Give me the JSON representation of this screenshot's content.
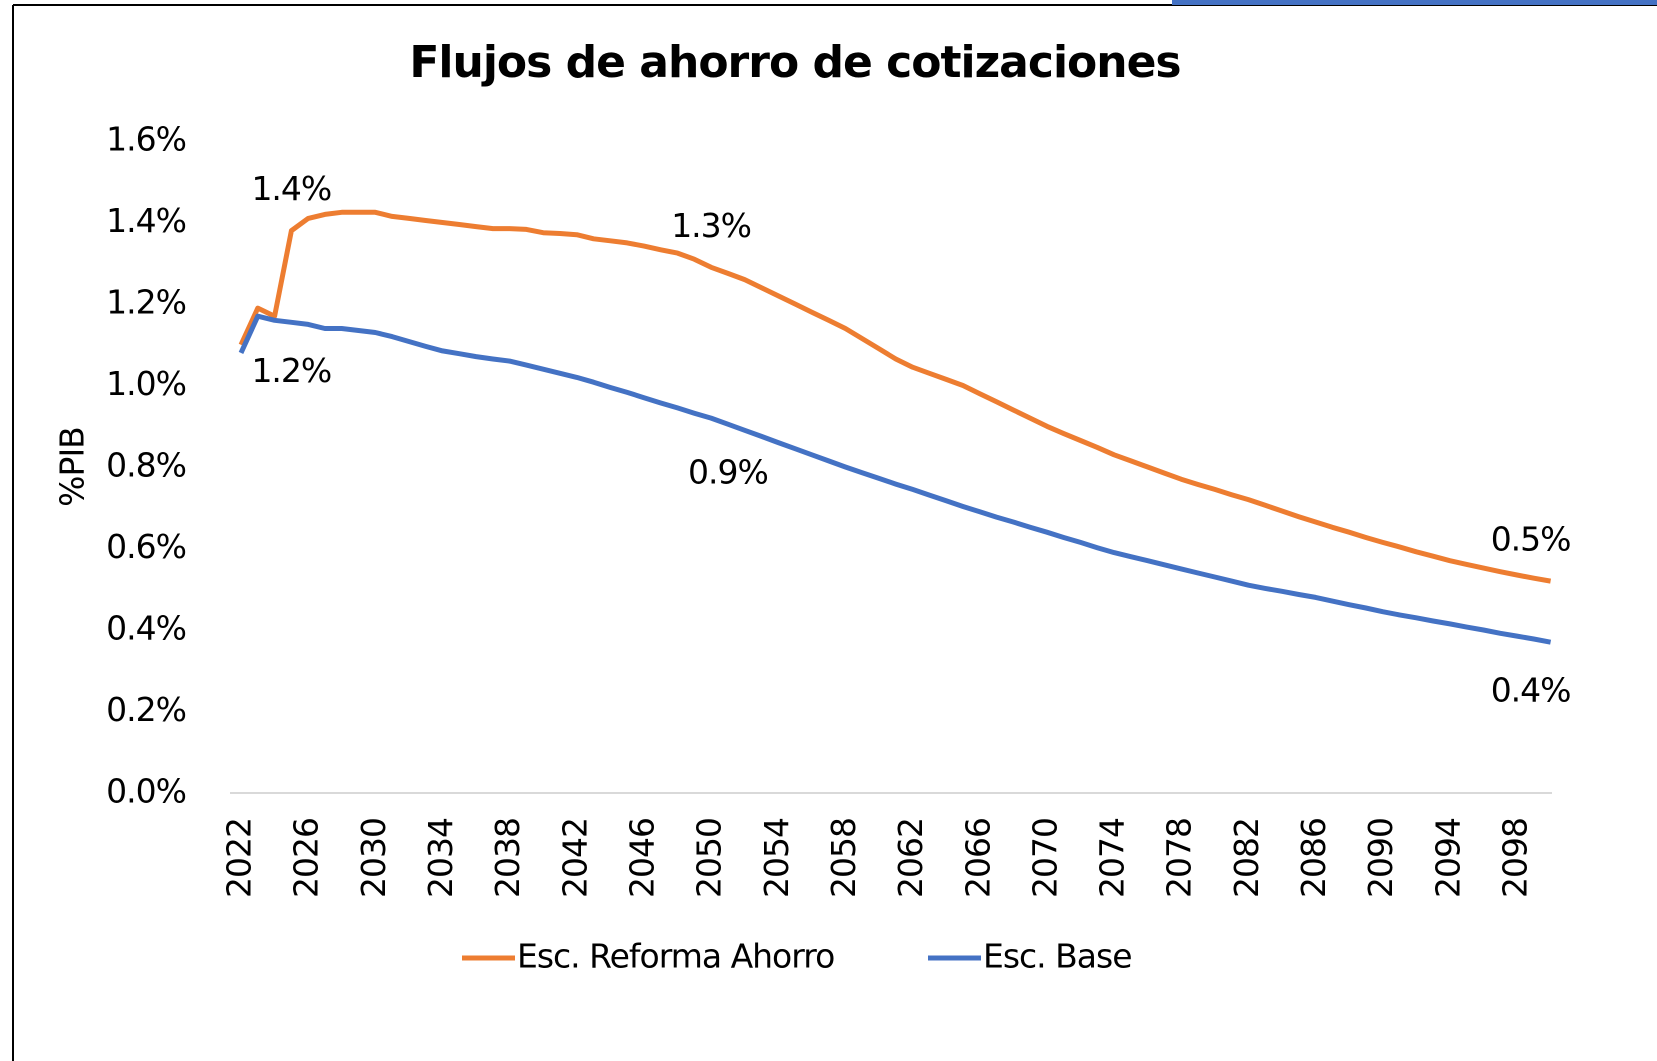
{
  "chart_data": {
    "type": "line",
    "title": "Flujos de ahorro de cotizaciones",
    "y_label": "%PIB",
    "categories": [
      "2022",
      null,
      null,
      null,
      "2026",
      null,
      null,
      null,
      "2030",
      null,
      null,
      null,
      "2034",
      null,
      null,
      null,
      "2038",
      null,
      null,
      null,
      "2042",
      null,
      null,
      null,
      "2046",
      null,
      null,
      null,
      "2050",
      null,
      null,
      null,
      "2054",
      null,
      null,
      null,
      "2058",
      null,
      null,
      null,
      "2062",
      null,
      null,
      null,
      "2066",
      null,
      null,
      null,
      "2070",
      null,
      null,
      null,
      "2074",
      null,
      null,
      null,
      "2078",
      null,
      null,
      null,
      "2082",
      null,
      null,
      null,
      "2086",
      null,
      null,
      null,
      "2090",
      null,
      null,
      null,
      "2094",
      null,
      null,
      null,
      "2098",
      null,
      null
    ],
    "series": [
      {
        "name": "Esc. Reforma Ahorro",
        "color": "#ed7d31",
        "values": [
          1.1,
          1.19,
          1.17,
          1.38,
          1.41,
          1.42,
          1.425,
          1.425,
          1.425,
          1.415,
          1.41,
          1.405,
          1.4,
          1.395,
          1.39,
          1.385,
          1.385,
          1.383,
          1.375,
          1.373,
          1.37,
          1.36,
          1.355,
          1.35,
          1.342,
          1.333,
          1.325,
          1.31,
          1.29,
          1.275,
          1.26,
          1.24,
          1.22,
          1.2,
          1.18,
          1.16,
          1.14,
          1.115,
          1.09,
          1.065,
          1.045,
          1.03,
          1.015,
          1.0,
          0.98,
          0.96,
          0.94,
          0.92,
          0.9,
          0.882,
          0.865,
          0.848,
          0.83,
          0.815,
          0.8,
          0.785,
          0.77,
          0.757,
          0.745,
          0.732,
          0.72,
          0.706,
          0.692,
          0.678,
          0.665,
          0.652,
          0.64,
          0.627,
          0.615,
          0.604,
          0.592,
          0.581,
          0.57,
          0.561,
          0.552,
          0.543,
          0.535,
          0.527,
          0.52
        ],
        "value_labels": [
          null,
          null,
          null,
          "1.4%",
          null,
          null,
          null,
          null,
          null,
          null,
          null,
          null,
          null,
          null,
          null,
          null,
          null,
          null,
          null,
          null,
          null,
          null,
          null,
          null,
          null,
          null,
          null,
          null,
          "1.3%",
          null,
          null,
          null,
          null,
          null,
          null,
          null,
          null,
          null,
          null,
          null,
          null,
          null,
          null,
          null,
          null,
          null,
          null,
          null,
          null,
          null,
          null,
          null,
          null,
          null,
          null,
          null,
          null,
          null,
          null,
          null,
          null,
          null,
          null,
          null,
          null,
          null,
          null,
          null,
          null,
          null,
          null,
          null,
          null,
          null,
          null,
          null,
          null,
          null,
          "0.5%"
        ]
      },
      {
        "name": "Esc. Base",
        "color": "#4472c4",
        "values": [
          1.08,
          1.17,
          1.16,
          1.155,
          1.15,
          1.14,
          1.14,
          1.135,
          1.13,
          1.12,
          1.108,
          1.096,
          1.085,
          1.078,
          1.071,
          1.065,
          1.06,
          1.05,
          1.04,
          1.03,
          1.02,
          1.008,
          0.995,
          0.983,
          0.97,
          0.957,
          0.945,
          0.932,
          0.92,
          0.905,
          0.89,
          0.875,
          0.86,
          0.845,
          0.83,
          0.815,
          0.8,
          0.786,
          0.772,
          0.758,
          0.745,
          0.731,
          0.717,
          0.703,
          0.69,
          0.677,
          0.665,
          0.652,
          0.64,
          0.627,
          0.615,
          0.602,
          0.59,
          0.58,
          0.57,
          0.56,
          0.55,
          0.54,
          0.53,
          0.52,
          0.51,
          0.502,
          0.495,
          0.487,
          0.48,
          0.471,
          0.462,
          0.454,
          0.445,
          0.437,
          0.43,
          0.422,
          0.415,
          0.407,
          0.4,
          0.392,
          0.385,
          0.378,
          0.37
        ],
        "value_labels": [
          null,
          null,
          null,
          "1.2%",
          null,
          null,
          null,
          null,
          null,
          null,
          null,
          null,
          null,
          null,
          null,
          null,
          null,
          null,
          null,
          null,
          null,
          null,
          null,
          null,
          null,
          null,
          null,
          null,
          null,
          "0.9%",
          null,
          null,
          null,
          null,
          null,
          null,
          null,
          null,
          null,
          null,
          null,
          null,
          null,
          null,
          null,
          null,
          null,
          null,
          null,
          null,
          null,
          null,
          null,
          null,
          null,
          null,
          null,
          null,
          null,
          null,
          null,
          null,
          null,
          null,
          null,
          null,
          null,
          null,
          null,
          null,
          null,
          null,
          null,
          null,
          null,
          null,
          null,
          null,
          "0.4%"
        ]
      }
    ],
    "ylim": [
      0,
      1.6
    ],
    "yticks": [
      {
        "value": 0,
        "label": "0.0%"
      },
      {
        "value": 0.2,
        "label": "0.2%"
      },
      {
        "value": 0.4,
        "label": "0.4%"
      },
      {
        "value": 0.6,
        "label": "0.6%"
      },
      {
        "value": 0.8,
        "label": "0.8%"
      },
      {
        "value": 1.0,
        "label": "1.0%"
      },
      {
        "value": 1.2,
        "label": "1.2%"
      },
      {
        "value": 1.4,
        "label": "1.4%"
      },
      {
        "value": 1.6,
        "label": "1.6%"
      }
    ],
    "legend": "bottom"
  }
}
